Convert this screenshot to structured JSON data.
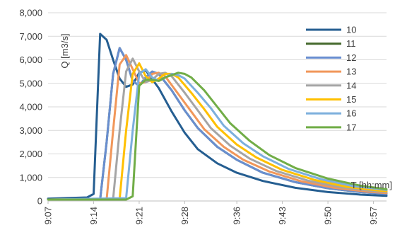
{
  "chart_data": {
    "type": "line",
    "title": "",
    "xlabel": "T [hh:mm]",
    "ylabel": "Q [m3/s]",
    "xlim": [
      "9:07",
      "9:59"
    ],
    "ylim": [
      0,
      8000
    ],
    "yticks": [
      0,
      1000,
      2000,
      3000,
      4000,
      5000,
      6000,
      7000,
      8000
    ],
    "ytick_labels": [
      "0",
      "1,000",
      "2,000",
      "3,000",
      "4,000",
      "5,000",
      "6,000",
      "7,000",
      "8,000"
    ],
    "xtick_labels": [
      "9:07",
      "9:14",
      "9:21",
      "9:28",
      "9:36",
      "9:43",
      "9:50",
      "9:57"
    ],
    "grid": "horizontal",
    "legend_position": "top-right",
    "series": [
      {
        "name": "10",
        "color": "#255E91",
        "x": [
          "9:07",
          "9:13",
          "9:14",
          "9:15",
          "9:16",
          "9:17",
          "9:18",
          "9:19",
          "9:20",
          "9:21",
          "9:22",
          "9:24",
          "9:26",
          "9:28",
          "9:30",
          "9:33",
          "9:36",
          "9:40",
          "9:45",
          "9:50",
          "9:55",
          "9:59"
        ],
        "values": [
          100,
          150,
          300,
          7100,
          6850,
          6000,
          5200,
          4850,
          4950,
          5450,
          5550,
          4800,
          3800,
          2900,
          2200,
          1600,
          1200,
          850,
          560,
          380,
          270,
          220
        ]
      },
      {
        "name": "11",
        "color": "#43682B",
        "x": [
          "9:07",
          "9:15",
          "9:16",
          "9:17",
          "9:18",
          "9:19",
          "9:20",
          "9:21",
          "9:22",
          "9:23",
          "9:24",
          "9:26",
          "9:28",
          "9:30",
          "9:33",
          "9:36",
          "9:40",
          "9:45",
          "9:50",
          "9:55",
          "9:59"
        ],
        "values": [
          60,
          60,
          2500,
          5400,
          6500,
          6000,
          5100,
          4900,
          5250,
          5500,
          5400,
          4700,
          3850,
          3100,
          2300,
          1750,
          1200,
          800,
          540,
          380,
          300
        ]
      },
      {
        "name": "12",
        "color": "#698ED0",
        "x": [
          "9:07",
          "9:15",
          "9:16",
          "9:17",
          "9:18",
          "9:19",
          "9:20",
          "9:21",
          "9:22",
          "9:23",
          "9:24",
          "9:26",
          "9:28",
          "9:30",
          "9:33",
          "9:36",
          "9:40",
          "9:45",
          "9:50",
          "9:55",
          "9:59"
        ],
        "values": [
          60,
          60,
          2500,
          5400,
          6500,
          6000,
          5100,
          4900,
          5250,
          5500,
          5400,
          4700,
          3850,
          3100,
          2300,
          1750,
          1200,
          800,
          540,
          380,
          300
        ]
      },
      {
        "name": "13",
        "color": "#F1975A",
        "x": [
          "9:07",
          "9:16",
          "9:17",
          "9:18",
          "9:19",
          "9:20",
          "9:21",
          "9:22",
          "9:23",
          "9:24",
          "9:25",
          "9:27",
          "9:29",
          "9:31",
          "9:34",
          "9:37",
          "9:41",
          "9:46",
          "9:51",
          "9:56",
          "9:59"
        ],
        "values": [
          60,
          60,
          3000,
          5800,
          6200,
          5600,
          5000,
          5050,
          5400,
          5450,
          5300,
          4550,
          3800,
          3050,
          2300,
          1750,
          1250,
          830,
          560,
          400,
          340
        ]
      },
      {
        "name": "14",
        "color": "#A5A5A5",
        "x": [
          "9:07",
          "9:17",
          "9:18",
          "9:19",
          "9:20",
          "9:21",
          "9:22",
          "9:23",
          "9:24",
          "9:25",
          "9:26",
          "9:28",
          "9:30",
          "9:32",
          "9:35",
          "9:38",
          "9:42",
          "9:47",
          "9:52",
          "9:57",
          "9:59"
        ],
        "values": [
          60,
          80,
          3000,
          5500,
          6050,
          5500,
          5050,
          5150,
          5400,
          5450,
          5300,
          4600,
          3850,
          3100,
          2350,
          1800,
          1280,
          860,
          580,
          420,
          380
        ]
      },
      {
        "name": "15",
        "color": "#FFC000",
        "x": [
          "9:07",
          "9:18",
          "9:19",
          "9:20",
          "9:21",
          "9:22",
          "9:23",
          "9:24",
          "9:25",
          "9:26",
          "9:27",
          "9:29",
          "9:31",
          "9:33",
          "9:36",
          "9:39",
          "9:43",
          "9:48",
          "9:53",
          "9:58",
          "9:59"
        ],
        "values": [
          60,
          80,
          3000,
          5400,
          5850,
          5300,
          5050,
          5200,
          5400,
          5400,
          5250,
          4600,
          3900,
          3150,
          2400,
          1850,
          1320,
          890,
          600,
          440,
          420
        ]
      },
      {
        "name": "16",
        "color": "#7CAFDD",
        "x": [
          "9:07",
          "9:19",
          "9:20",
          "9:21",
          "9:22",
          "9:23",
          "9:24",
          "9:25",
          "9:26",
          "9:27",
          "9:28",
          "9:30",
          "9:32",
          "9:34",
          "9:37",
          "9:40",
          "9:44",
          "9:49",
          "9:54",
          "9:59"
        ],
        "values": [
          60,
          120,
          3000,
          5400,
          5600,
          5250,
          5100,
          5250,
          5400,
          5350,
          5200,
          4600,
          3950,
          3200,
          2450,
          1900,
          1360,
          920,
          630,
          470
        ]
      },
      {
        "name": "17",
        "color": "#71AD47",
        "x": [
          "9:07",
          "9:19",
          "9:20",
          "9:21",
          "9:22",
          "9:23",
          "9:24",
          "9:25",
          "9:26",
          "9:27",
          "9:28",
          "9:29",
          "9:31",
          "9:33",
          "9:35",
          "9:38",
          "9:41",
          "9:45",
          "9:50",
          "9:55",
          "9:59"
        ],
        "values": [
          60,
          60,
          200,
          4900,
          5150,
          5150,
          5100,
          5250,
          5350,
          5450,
          5400,
          5250,
          4700,
          4000,
          3300,
          2550,
          1950,
          1400,
          950,
          650,
          500
        ]
      }
    ]
  }
}
